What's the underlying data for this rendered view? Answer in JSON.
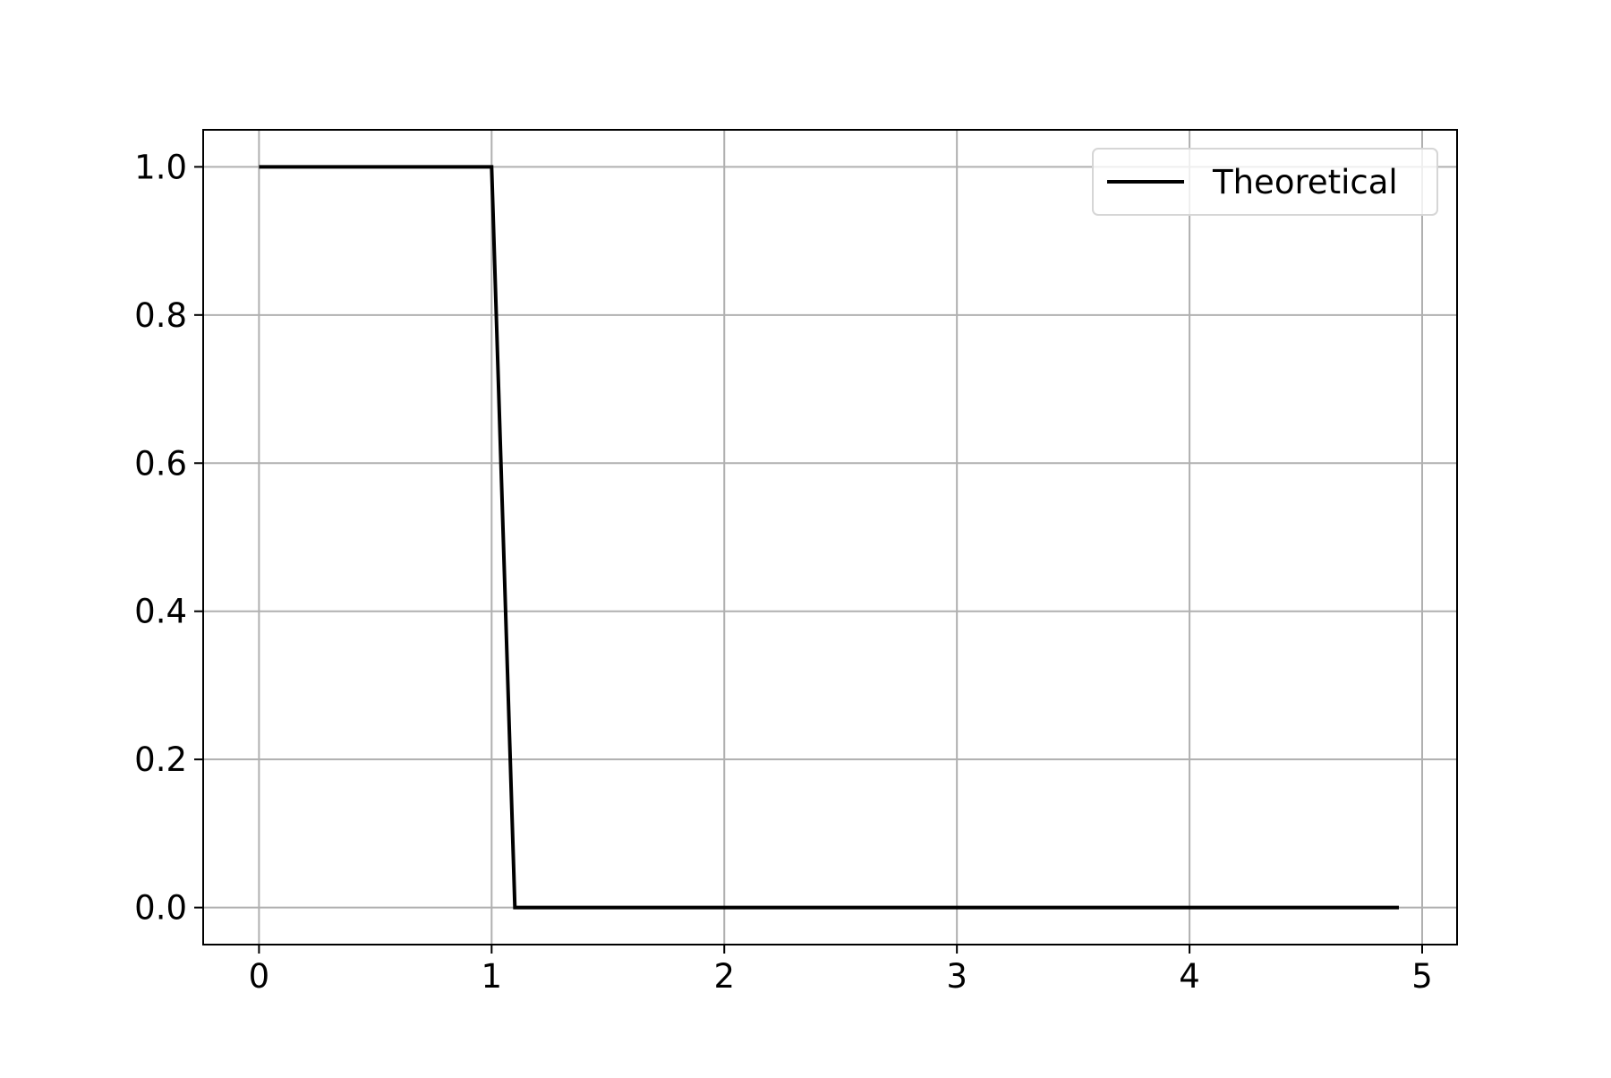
{
  "chart_data": {
    "type": "line",
    "title": "",
    "xlabel": "",
    "ylabel": "",
    "xlim": [
      -0.24,
      5.15
    ],
    "ylim": [
      -0.05,
      1.05
    ],
    "x_ticks": [
      0,
      1,
      2,
      3,
      4,
      5
    ],
    "x_tick_labels": [
      "0",
      "1",
      "2",
      "3",
      "4",
      "5"
    ],
    "y_ticks": [
      0.0,
      0.2,
      0.4,
      0.6,
      0.8,
      1.0
    ],
    "y_tick_labels": [
      "0.0",
      "0.2",
      "0.4",
      "0.6",
      "0.8",
      "1.0"
    ],
    "grid": true,
    "legend_position": "top-right",
    "series": [
      {
        "name": "Theoretical",
        "color": "#000000",
        "x": [
          0,
          1.0,
          1.1,
          4.9
        ],
        "y": [
          1.0,
          1.0,
          0.0,
          0.0
        ]
      }
    ]
  }
}
